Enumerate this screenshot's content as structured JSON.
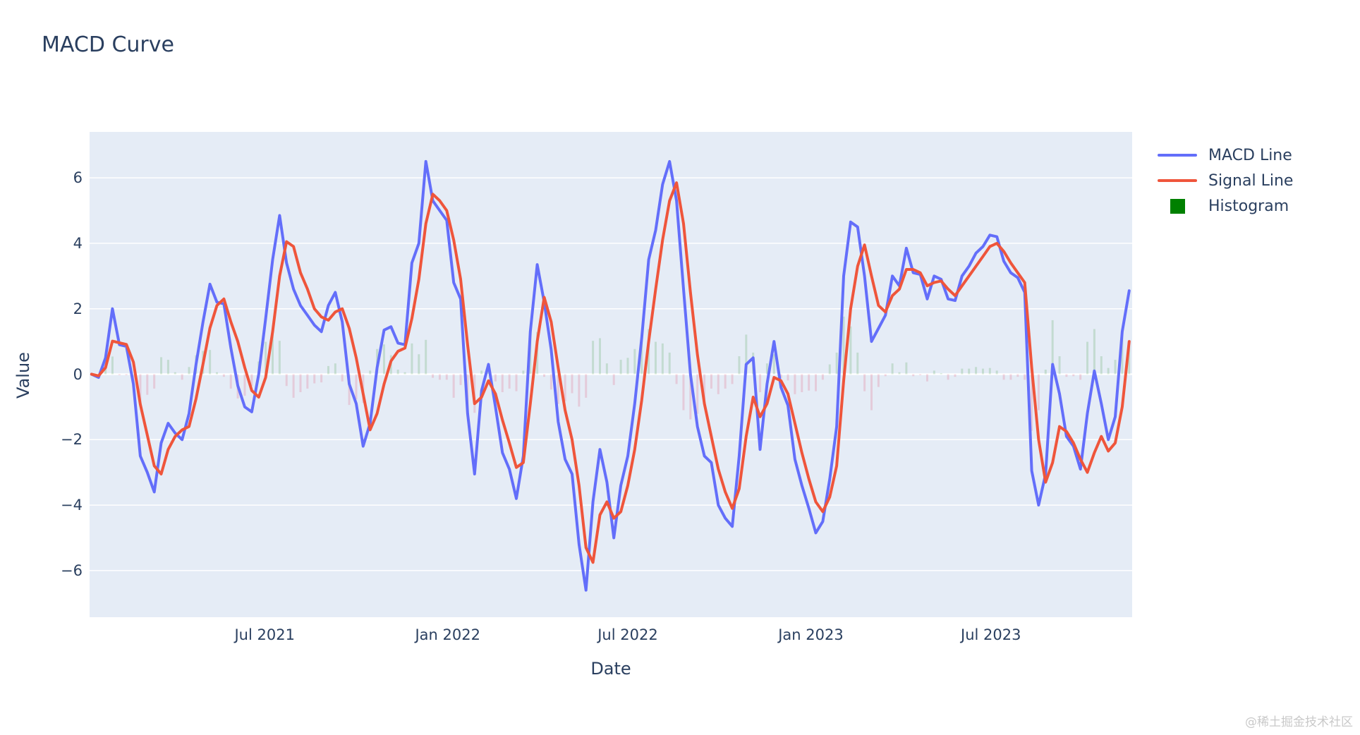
{
  "page": {
    "title": "MACD Curve",
    "watermark": "@稀土掘金技术社区"
  },
  "chart_data": {
    "type": "line",
    "title": "MACD Curve",
    "xlabel": "Date",
    "ylabel": "Value",
    "x_range": [
      "2021-01-06",
      "2023-11-20"
    ],
    "ylim": [
      -7.4,
      7.4
    ],
    "yticks": [
      6,
      4,
      2,
      0,
      -2,
      -4,
      -6
    ],
    "xticks": [
      {
        "date": "2021-07-01",
        "label": "Jul 2021"
      },
      {
        "date": "2022-01-01",
        "label": "Jan 2022"
      },
      {
        "date": "2022-07-01",
        "label": "Jul 2022"
      },
      {
        "date": "2023-01-01",
        "label": "Jan 2023"
      },
      {
        "date": "2023-07-01",
        "label": "Jul 2023"
      }
    ],
    "grid": true,
    "legend_position": "right",
    "plot_bg": "#e5ecf6",
    "grid_color": "#ffffff",
    "series": [
      {
        "name": "MACD Line",
        "type": "line",
        "color": "#636efa"
      },
      {
        "name": "Signal Line",
        "type": "line",
        "color": "#ef553b"
      },
      {
        "name": "Histogram",
        "type": "bar",
        "color": "#008000",
        "positive_color": "rgba(0,128,0,0.15)",
        "negative_color": "rgba(220,20,60,0.15)"
      }
    ],
    "dates": [
      "2021-01-08",
      "2021-01-15",
      "2021-01-22",
      "2021-01-29",
      "2021-02-05",
      "2021-02-12",
      "2021-02-19",
      "2021-02-26",
      "2021-03-05",
      "2021-03-12",
      "2021-03-19",
      "2021-03-26",
      "2021-04-02",
      "2021-04-09",
      "2021-04-16",
      "2021-04-23",
      "2021-04-30",
      "2021-05-07",
      "2021-05-14",
      "2021-05-21",
      "2021-05-28",
      "2021-06-04",
      "2021-06-11",
      "2021-06-18",
      "2021-06-25",
      "2021-07-02",
      "2021-07-09",
      "2021-07-16",
      "2021-07-23",
      "2021-07-30",
      "2021-08-06",
      "2021-08-13",
      "2021-08-20",
      "2021-08-27",
      "2021-09-03",
      "2021-09-10",
      "2021-09-17",
      "2021-09-24",
      "2021-10-01",
      "2021-10-08",
      "2021-10-15",
      "2021-10-22",
      "2021-10-29",
      "2021-11-05",
      "2021-11-12",
      "2021-11-19",
      "2021-11-26",
      "2021-12-03",
      "2021-12-10",
      "2021-12-17",
      "2021-12-24",
      "2021-12-31",
      "2022-01-07",
      "2022-01-14",
      "2022-01-21",
      "2022-01-28",
      "2022-02-04",
      "2022-02-11",
      "2022-02-18",
      "2022-02-25",
      "2022-03-04",
      "2022-03-11",
      "2022-03-18",
      "2022-03-25",
      "2022-04-01",
      "2022-04-08",
      "2022-04-15",
      "2022-04-22",
      "2022-04-29",
      "2022-05-06",
      "2022-05-13",
      "2022-05-20",
      "2022-05-27",
      "2022-06-03",
      "2022-06-10",
      "2022-06-17",
      "2022-06-24",
      "2022-07-01",
      "2022-07-08",
      "2022-07-15",
      "2022-07-22",
      "2022-07-29",
      "2022-08-05",
      "2022-08-12",
      "2022-08-19",
      "2022-08-26",
      "2022-09-02",
      "2022-09-09",
      "2022-09-16",
      "2022-09-23",
      "2022-09-30",
      "2022-10-07",
      "2022-10-14",
      "2022-10-21",
      "2022-10-28",
      "2022-11-04",
      "2022-11-11",
      "2022-11-18",
      "2022-11-25",
      "2022-12-02",
      "2022-12-09",
      "2022-12-16",
      "2022-12-23",
      "2022-12-30",
      "2023-01-06",
      "2023-01-13",
      "2023-01-20",
      "2023-01-27",
      "2023-02-03",
      "2023-02-10",
      "2023-02-17",
      "2023-02-24",
      "2023-03-03",
      "2023-03-10",
      "2023-03-17",
      "2023-03-24",
      "2023-03-31",
      "2023-04-07",
      "2023-04-14",
      "2023-04-21",
      "2023-04-28",
      "2023-05-05",
      "2023-05-12",
      "2023-05-19",
      "2023-05-26",
      "2023-06-02",
      "2023-06-09",
      "2023-06-16",
      "2023-06-23",
      "2023-06-30",
      "2023-07-07",
      "2023-07-14",
      "2023-07-21",
      "2023-07-28",
      "2023-08-04",
      "2023-08-11",
      "2023-08-18",
      "2023-08-25",
      "2023-09-01",
      "2023-09-08",
      "2023-09-15",
      "2023-09-22",
      "2023-09-29",
      "2023-10-06",
      "2023-10-13",
      "2023-10-20",
      "2023-10-27",
      "2023-11-03",
      "2023-11-10",
      "2023-11-17"
    ],
    "macd": [
      0.0,
      -0.1,
      0.5,
      2.0,
      0.9,
      0.85,
      -0.3,
      -2.5,
      -3.0,
      -3.6,
      -2.1,
      -1.5,
      -1.8,
      -2.0,
      -1.2,
      0.3,
      1.6,
      2.75,
      2.2,
      2.15,
      0.8,
      -0.35,
      -1.0,
      -1.15,
      0.0,
      1.7,
      3.5,
      4.85,
      3.4,
      2.6,
      2.1,
      1.8,
      1.5,
      1.3,
      2.1,
      2.5,
      1.6,
      -0.3,
      -0.9,
      -2.2,
      -1.5,
      0.2,
      1.35,
      1.45,
      0.95,
      0.9,
      3.4,
      4.0,
      6.5,
      5.3,
      5.0,
      4.7,
      2.8,
      2.3,
      -1.2,
      -3.05,
      -0.5,
      0.3,
      -1.0,
      -2.4,
      -2.9,
      -3.8,
      -2.5,
      1.3,
      3.35,
      2.2,
      0.75,
      -1.45,
      -2.6,
      -3.05,
      -5.2,
      -6.6,
      -3.9,
      -2.3,
      -3.3,
      -5.0,
      -3.4,
      -2.5,
      -0.9,
      1.1,
      3.5,
      4.4,
      5.8,
      6.5,
      5.3,
      2.6,
      0.0,
      -1.6,
      -2.5,
      -2.7,
      -4.0,
      -4.4,
      -4.65,
      -2.5,
      0.3,
      0.5,
      -2.3,
      -0.3,
      1.0,
      -0.4,
      -0.95,
      -2.6,
      -3.4,
      -4.1,
      -4.85,
      -4.5,
      -3.2,
      -1.6,
      3.0,
      4.65,
      4.5,
      3.0,
      1.0,
      1.4,
      1.8,
      3.0,
      2.7,
      3.85,
      3.1,
      3.05,
      2.3,
      3.0,
      2.9,
      2.3,
      2.25,
      3.0,
      3.3,
      3.7,
      3.9,
      4.25,
      4.2,
      3.45,
      3.1,
      2.95,
      2.5,
      -2.95,
      -4.0,
      -3.05,
      0.3,
      -0.6,
      -1.9,
      -2.2,
      -2.9,
      -1.2,
      0.1,
      -0.9,
      -2.0,
      -1.3,
      1.3,
      2.55
    ],
    "signal": [
      0.0,
      -0.05,
      0.2,
      1.01,
      0.96,
      0.91,
      0.37,
      -0.92,
      -1.86,
      -2.8,
      -3.05,
      -2.3,
      -1.9,
      -1.7,
      -1.6,
      -0.75,
      0.31,
      1.41,
      2.1,
      2.3,
      1.6,
      1.0,
      0.2,
      -0.5,
      -0.7,
      -0.1,
      1.3,
      3.0,
      4.05,
      3.9,
      3.1,
      2.6,
      2.0,
      1.75,
      1.65,
      1.9,
      2.0,
      1.4,
      0.5,
      -0.6,
      -1.7,
      -1.2,
      -0.3,
      0.4,
      0.7,
      0.8,
      1.7,
      2.9,
      4.6,
      5.5,
      5.3,
      5.0,
      4.1,
      2.9,
      0.9,
      -0.9,
      -0.7,
      -0.2,
      -0.6,
      -1.4,
      -2.1,
      -2.85,
      -2.7,
      -0.9,
      1.0,
      2.35,
      1.6,
      0.2,
      -1.1,
      -2.0,
      -3.4,
      -5.3,
      -5.75,
      -4.3,
      -3.9,
      -4.4,
      -4.2,
      -3.4,
      -2.3,
      -0.8,
      1.0,
      2.6,
      4.1,
      5.3,
      5.85,
      4.6,
      2.5,
      0.6,
      -0.9,
      -1.9,
      -2.9,
      -3.6,
      -4.1,
      -3.5,
      -1.9,
      -0.7,
      -1.3,
      -0.9,
      -0.1,
      -0.2,
      -0.6,
      -1.5,
      -2.4,
      -3.2,
      -3.9,
      -4.2,
      -3.75,
      -2.8,
      -0.2,
      2.0,
      3.3,
      3.95,
      3.0,
      2.1,
      1.9,
      2.4,
      2.6,
      3.2,
      3.2,
      3.1,
      2.7,
      2.8,
      2.85,
      2.6,
      2.4,
      2.7,
      3.0,
      3.3,
      3.6,
      3.9,
      4.0,
      3.75,
      3.4,
      3.1,
      2.8,
      0.2,
      -2.0,
      -3.3,
      -2.7,
      -1.6,
      -1.75,
      -2.1,
      -2.6,
      -3.0,
      -2.4,
      -1.9,
      -2.35,
      -2.1,
      -1.0,
      1.0
    ],
    "histogram": [
      0.0,
      -0.03,
      0.17,
      0.54,
      -0.03,
      -0.03,
      -0.37,
      -0.87,
      -0.63,
      -0.44,
      0.52,
      0.44,
      0.06,
      -0.17,
      0.22,
      0.58,
      0.71,
      0.74,
      0.06,
      -0.08,
      -0.44,
      -0.74,
      -0.66,
      -0.36,
      0.39,
      0.99,
      1.21,
      1.02,
      -0.36,
      -0.72,
      -0.55,
      -0.44,
      -0.28,
      -0.25,
      0.25,
      0.33,
      -0.22,
      -0.94,
      -0.77,
      -0.88,
      0.11,
      0.77,
      0.91,
      0.58,
      0.14,
      0.06,
      0.94,
      0.61,
      1.05,
      -0.11,
      -0.17,
      -0.17,
      -0.72,
      -0.33,
      -1.16,
      -1.18,
      0.11,
      0.28,
      -0.22,
      -0.55,
      -0.44,
      -0.52,
      0.11,
      1.21,
      1.29,
      -0.08,
      -0.47,
      -0.91,
      -0.83,
      -0.58,
      -0.99,
      -0.72,
      1.02,
      1.1,
      0.33,
      -0.33,
      0.44,
      0.5,
      0.77,
      1.05,
      1.38,
      0.99,
      0.94,
      0.66,
      -0.3,
      -1.1,
      -1.38,
      -1.21,
      -0.88,
      -0.44,
      -0.61,
      -0.44,
      -0.3,
      0.55,
      1.21,
      0.66,
      -0.55,
      0.33,
      0.61,
      -0.11,
      -0.19,
      -0.61,
      -0.55,
      -0.5,
      -0.52,
      -0.17,
      0.3,
      0.66,
      1.76,
      1.46,
      0.66,
      -0.52,
      -1.1,
      -0.39,
      -0.06,
      0.33,
      0.06,
      0.36,
      -0.06,
      -0.03,
      -0.22,
      0.11,
      0.03,
      -0.17,
      -0.08,
      0.17,
      0.17,
      0.22,
      0.17,
      0.19,
      0.11,
      -0.17,
      -0.17,
      -0.08,
      -0.17,
      -1.73,
      -1.1,
      0.14,
      1.65,
      0.55,
      -0.08,
      -0.06,
      -0.17,
      0.99,
      1.38,
      0.55,
      0.19,
      0.44,
      1.27,
      0.85
    ]
  }
}
